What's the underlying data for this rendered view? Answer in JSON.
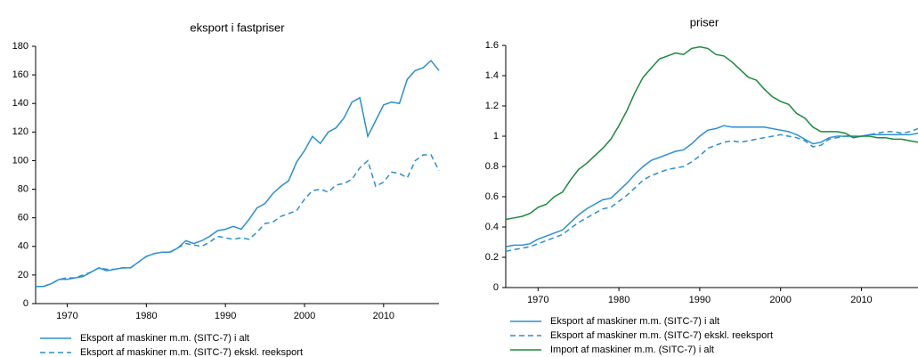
{
  "chart_data": [
    {
      "type": "line",
      "title": "eksport i fastpriser",
      "x": [
        1966,
        1967,
        1968,
        1969,
        1970,
        1971,
        1972,
        1973,
        1974,
        1975,
        1976,
        1977,
        1978,
        1979,
        1980,
        1981,
        1982,
        1983,
        1984,
        1985,
        1986,
        1987,
        1988,
        1989,
        1990,
        1991,
        1992,
        1993,
        1994,
        1995,
        1996,
        1997,
        1998,
        1999,
        2000,
        2001,
        2002,
        2003,
        2004,
        2005,
        2006,
        2007,
        2008,
        2009,
        2010,
        2011,
        2012,
        2013,
        2014,
        2015,
        2016,
        2017
      ],
      "series": [
        {
          "name": "Eksport af maskiner m.m. (SITC-7) i alt",
          "color": "#2b8fd0",
          "style": "solid",
          "values": [
            12,
            12,
            14,
            17,
            17,
            18,
            19,
            22,
            25,
            23,
            24,
            25,
            25,
            29,
            33,
            35,
            36,
            36,
            39,
            44,
            42,
            44,
            47,
            51,
            52,
            54,
            52,
            59,
            67,
            70,
            77,
            82,
            86,
            99,
            107,
            117,
            112,
            120,
            123,
            130,
            141,
            144,
            117,
            128,
            139,
            141,
            140,
            157,
            163,
            165,
            170,
            163
          ]
        },
        {
          "name": "Eksport af maskiner m.m. (SITC-7) ekskl. reeksport",
          "color": "#2b8fd0",
          "style": "dashed",
          "values": [
            12,
            12,
            14,
            17,
            18,
            18,
            20,
            22,
            25,
            24,
            24,
            25,
            25,
            29,
            33,
            35,
            36,
            36,
            39,
            42,
            41,
            40,
            43,
            47,
            46,
            45,
            46,
            45,
            50,
            56,
            57,
            61,
            63,
            65,
            73,
            79,
            80,
            78,
            83,
            84,
            87,
            95,
            100,
            82,
            85,
            92,
            91,
            88,
            100,
            104,
            104,
            93
          ]
        }
      ],
      "xlim": [
        1966,
        2017
      ],
      "xticks": [
        1970,
        1980,
        1990,
        2000,
        2010
      ],
      "ylim": [
        0,
        180
      ],
      "yticks": [
        0,
        20,
        40,
        60,
        80,
        100,
        120,
        140,
        160,
        180
      ]
    },
    {
      "type": "line",
      "title": "priser",
      "x": [
        1966,
        1967,
        1968,
        1969,
        1970,
        1971,
        1972,
        1973,
        1974,
        1975,
        1976,
        1977,
        1978,
        1979,
        1980,
        1981,
        1982,
        1983,
        1984,
        1985,
        1986,
        1987,
        1988,
        1989,
        1990,
        1991,
        1992,
        1993,
        1994,
        1995,
        1996,
        1997,
        1998,
        1999,
        2000,
        2001,
        2002,
        2003,
        2004,
        2005,
        2006,
        2007,
        2008,
        2009,
        2010,
        2011,
        2012,
        2013,
        2014,
        2015,
        2016,
        2017
      ],
      "series": [
        {
          "name": "Eksport af maskiner m.m. (SITC-7) i alt",
          "color": "#2b8fd0",
          "style": "solid",
          "values": [
            0.27,
            0.28,
            0.28,
            0.29,
            0.32,
            0.34,
            0.36,
            0.38,
            0.43,
            0.48,
            0.52,
            0.55,
            0.58,
            0.59,
            0.64,
            0.69,
            0.75,
            0.8,
            0.84,
            0.86,
            0.88,
            0.9,
            0.91,
            0.95,
            1.0,
            1.04,
            1.05,
            1.07,
            1.06,
            1.06,
            1.06,
            1.06,
            1.06,
            1.05,
            1.04,
            1.03,
            1.01,
            0.98,
            0.95,
            0.96,
            0.99,
            1.0,
            1.0,
            1.0,
            1.0,
            1.01,
            1.01,
            1.01,
            1.01,
            1.01,
            1.01,
            1.02
          ]
        },
        {
          "name": "Eksport af maskiner m.m. (SITC-7) ekskl. reeksport",
          "color": "#2b8fd0",
          "style": "dashed",
          "values": [
            0.24,
            0.25,
            0.26,
            0.27,
            0.29,
            0.31,
            0.33,
            0.35,
            0.39,
            0.43,
            0.46,
            0.49,
            0.52,
            0.53,
            0.57,
            0.61,
            0.66,
            0.71,
            0.74,
            0.76,
            0.78,
            0.79,
            0.8,
            0.83,
            0.87,
            0.92,
            0.94,
            0.96,
            0.97,
            0.96,
            0.97,
            0.98,
            0.99,
            1.0,
            1.01,
            1.0,
            0.99,
            0.97,
            0.93,
            0.94,
            0.98,
            0.99,
            1.0,
            1.0,
            1.0,
            1.01,
            1.02,
            1.03,
            1.03,
            1.02,
            1.03,
            1.05
          ]
        },
        {
          "name": "Import af maskiner m.m. (SITC-7) i alt",
          "color": "#1a8a3c",
          "style": "solid",
          "values": [
            0.45,
            0.46,
            0.47,
            0.49,
            0.53,
            0.55,
            0.6,
            0.63,
            0.71,
            0.78,
            0.82,
            0.87,
            0.92,
            0.98,
            1.07,
            1.17,
            1.29,
            1.39,
            1.45,
            1.51,
            1.53,
            1.55,
            1.54,
            1.58,
            1.59,
            1.58,
            1.54,
            1.53,
            1.49,
            1.44,
            1.39,
            1.37,
            1.31,
            1.26,
            1.23,
            1.21,
            1.15,
            1.12,
            1.06,
            1.03,
            1.03,
            1.03,
            1.02,
            0.99,
            1.0,
            1.0,
            0.99,
            0.99,
            0.98,
            0.98,
            0.97,
            0.96
          ]
        }
      ],
      "xlim": [
        1966,
        2017
      ],
      "xticks": [
        1970,
        1980,
        1990,
        2000,
        2010
      ],
      "ylim": [
        0,
        1.6
      ],
      "yticks": [
        0,
        0.2,
        0.4,
        0.6,
        0.8,
        1,
        1.2,
        1.4,
        1.6
      ]
    }
  ]
}
